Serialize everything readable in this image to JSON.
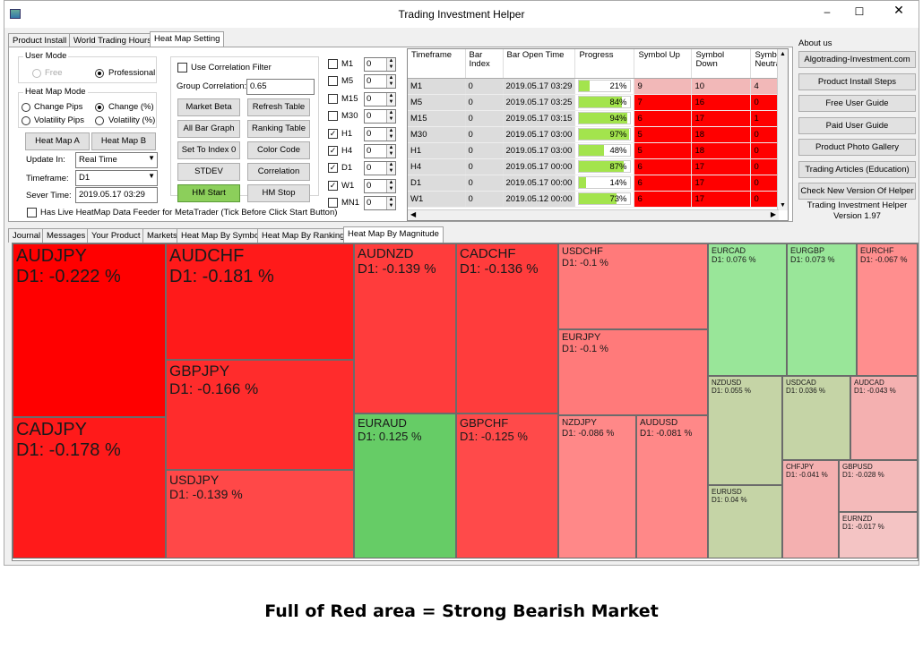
{
  "window": {
    "title": "Trading Investment Helper",
    "minimize": "–",
    "maximize": "☐",
    "close": "✕"
  },
  "top_tabs": [
    "Product Install",
    "World Trading Hours",
    "Heat Map Setting"
  ],
  "user_mode": {
    "title": "User Mode",
    "free": "Free",
    "professional": "Professional"
  },
  "heat_mode": {
    "title": "Heat Map Mode",
    "change_pips": "Change Pips",
    "change_pct": "Change (%)",
    "vol_pips": "Volatility Pips",
    "vol_pct": "Volatility (%)"
  },
  "heatmap_a": "Heat Map A",
  "heatmap_b": "Heat Map B",
  "update_in": {
    "label": "Update In:",
    "value": "Real Time"
  },
  "timeframe": {
    "label": "Timeframe:",
    "value": "D1"
  },
  "server_time": {
    "label": "Sever Time:",
    "value": "2019.05.17 03:29"
  },
  "live_feeder": "Has Live HeatMap Data Feeder for MetaTrader (Tick Before Click Start Button)",
  "use_corr": "Use Correlation Filter",
  "group_corr": {
    "label": "Group Correlation:",
    "value": "0.65"
  },
  "buttons": {
    "market_beta": "Market Beta",
    "refresh_table": "Refresh Table",
    "all_bar_graph": "All Bar Graph",
    "ranking_table": "Ranking Table",
    "set_index": "Set To Index 0",
    "color_code": "Color Code",
    "stdev": "STDEV",
    "correlation": "Correlation",
    "hm_start": "HM Start",
    "hm_stop": "HM Stop"
  },
  "tf_list": [
    {
      "name": "M1",
      "checked": false,
      "val": "0"
    },
    {
      "name": "M5",
      "checked": false,
      "val": "0"
    },
    {
      "name": "M15",
      "checked": false,
      "val": "0"
    },
    {
      "name": "M30",
      "checked": false,
      "val": "0"
    },
    {
      "name": "H1",
      "checked": true,
      "val": "0"
    },
    {
      "name": "H4",
      "checked": true,
      "val": "0"
    },
    {
      "name": "D1",
      "checked": true,
      "val": "0"
    },
    {
      "name": "W1",
      "checked": true,
      "val": "0"
    },
    {
      "name": "MN1",
      "checked": false,
      "val": "0"
    }
  ],
  "grid": {
    "headers": [
      "Timeframe",
      "Bar Index",
      "Bar Open Time",
      "Progress",
      "Symbol Up",
      "Symbol Down",
      "Symbo Neutra"
    ],
    "rows": [
      {
        "tf": "M1",
        "idx": "0",
        "time": "2019.05.17 03:29",
        "progress": 21,
        "up": "9",
        "down": "10",
        "neutral": "4"
      },
      {
        "tf": "M5",
        "idx": "0",
        "time": "2019.05.17 03:25",
        "progress": 84,
        "up": "7",
        "down": "16",
        "neutral": "0"
      },
      {
        "tf": "M15",
        "idx": "0",
        "time": "2019.05.17 03:15",
        "progress": 94,
        "up": "6",
        "down": "17",
        "neutral": "1"
      },
      {
        "tf": "M30",
        "idx": "0",
        "time": "2019.05.17 03:00",
        "progress": 97,
        "up": "5",
        "down": "18",
        "neutral": "0"
      },
      {
        "tf": "H1",
        "idx": "0",
        "time": "2019.05.17 03:00",
        "progress": 48,
        "up": "5",
        "down": "18",
        "neutral": "0"
      },
      {
        "tf": "H4",
        "idx": "0",
        "time": "2019.05.17 00:00",
        "progress": 87,
        "up": "6",
        "down": "17",
        "neutral": "0"
      },
      {
        "tf": "D1",
        "idx": "0",
        "time": "2019.05.17 00:00",
        "progress": 14,
        "up": "6",
        "down": "17",
        "neutral": "0"
      },
      {
        "tf": "W1",
        "idx": "0",
        "time": "2019.05.12 00:00",
        "progress": 73,
        "up": "6",
        "down": "17",
        "neutral": "0"
      }
    ]
  },
  "about": {
    "title": "About us",
    "links": [
      "Algotrading-Investment.com",
      "Product Install Steps",
      "Free User Guide",
      "Paid User Guide",
      "Product Photo Gallery",
      "Trading Articles (Education)",
      "Check New Version Of Helper"
    ],
    "name": "Trading Investment Helper",
    "version": "Version 1.97"
  },
  "bottom_tabs": [
    "Journal",
    "Messages",
    "Your Product",
    "Markets",
    "Heat Map By Symbol",
    "Heat Map By Ranking",
    "Heat Map By Magnitude"
  ],
  "heatmap": [
    {
      "symbol": "AUDJPY",
      "value": "D1: -0.222 %",
      "color": "#ff0000"
    },
    {
      "symbol": "CADJPY",
      "value": "D1: -0.178 %",
      "color": "#ff1a1a"
    },
    {
      "symbol": "AUDCHF",
      "value": "D1: -0.181 %",
      "color": "#ff1a1a"
    },
    {
      "symbol": "GBPJPY",
      "value": "D1: -0.166 %",
      "color": "#ff2c2c"
    },
    {
      "symbol": "USDJPY",
      "value": "D1: -0.139 %",
      "color": "#ff4848"
    },
    {
      "symbol": "AUDNZD",
      "value": "D1: -0.139 %",
      "color": "#ff3c3c"
    },
    {
      "symbol": "CADCHF",
      "value": "D1: -0.136 %",
      "color": "#ff3c3c"
    },
    {
      "symbol": "EURAUD",
      "value": "D1: 0.125 %",
      "color": "#66cc66"
    },
    {
      "symbol": "GBPCHF",
      "value": "D1: -0.125 %",
      "color": "#ff4a4a"
    },
    {
      "symbol": "USDCHF",
      "value": "D1: -0.1 %",
      "color": "#ff7a7a"
    },
    {
      "symbol": "EURJPY",
      "value": "D1: -0.1 %",
      "color": "#ff7a7a"
    },
    {
      "symbol": "NZDJPY",
      "value": "D1: -0.086 %",
      "color": "#ff8888"
    },
    {
      "symbol": "AUDUSD",
      "value": "D1: -0.081 %",
      "color": "#ff8888"
    },
    {
      "symbol": "EURCAD",
      "value": "D1: 0.076 %",
      "color": "#99e699"
    },
    {
      "symbol": "EURGBP",
      "value": "D1: 0.073 %",
      "color": "#99e699"
    },
    {
      "symbol": "EURCHF",
      "value": "D1: -0.067 %",
      "color": "#ff8e8e"
    },
    {
      "symbol": "NZDUSD",
      "value": "D1: 0.055 %",
      "color": "#c5d4a6"
    },
    {
      "symbol": "USDCAD",
      "value": "D1: 0.036 %",
      "color": "#c5d4a6"
    },
    {
      "symbol": "AUDCAD",
      "value": "D1: -0.043 %",
      "color": "#f4b0b0"
    },
    {
      "symbol": "EURUSD",
      "value": "D1: 0.04 %",
      "color": "#c5d4a6"
    },
    {
      "symbol": "CHFJPY",
      "value": "D1: -0.041 %",
      "color": "#f4b0b0"
    },
    {
      "symbol": "GBPUSD",
      "value": "D1: -0.028 %",
      "color": "#f4baba"
    },
    {
      "symbol": "EURNZD",
      "value": "D1: -0.017 %",
      "color": "#f4c4c4"
    }
  ],
  "caption": "Full of Red area = Strong Bearish Market"
}
